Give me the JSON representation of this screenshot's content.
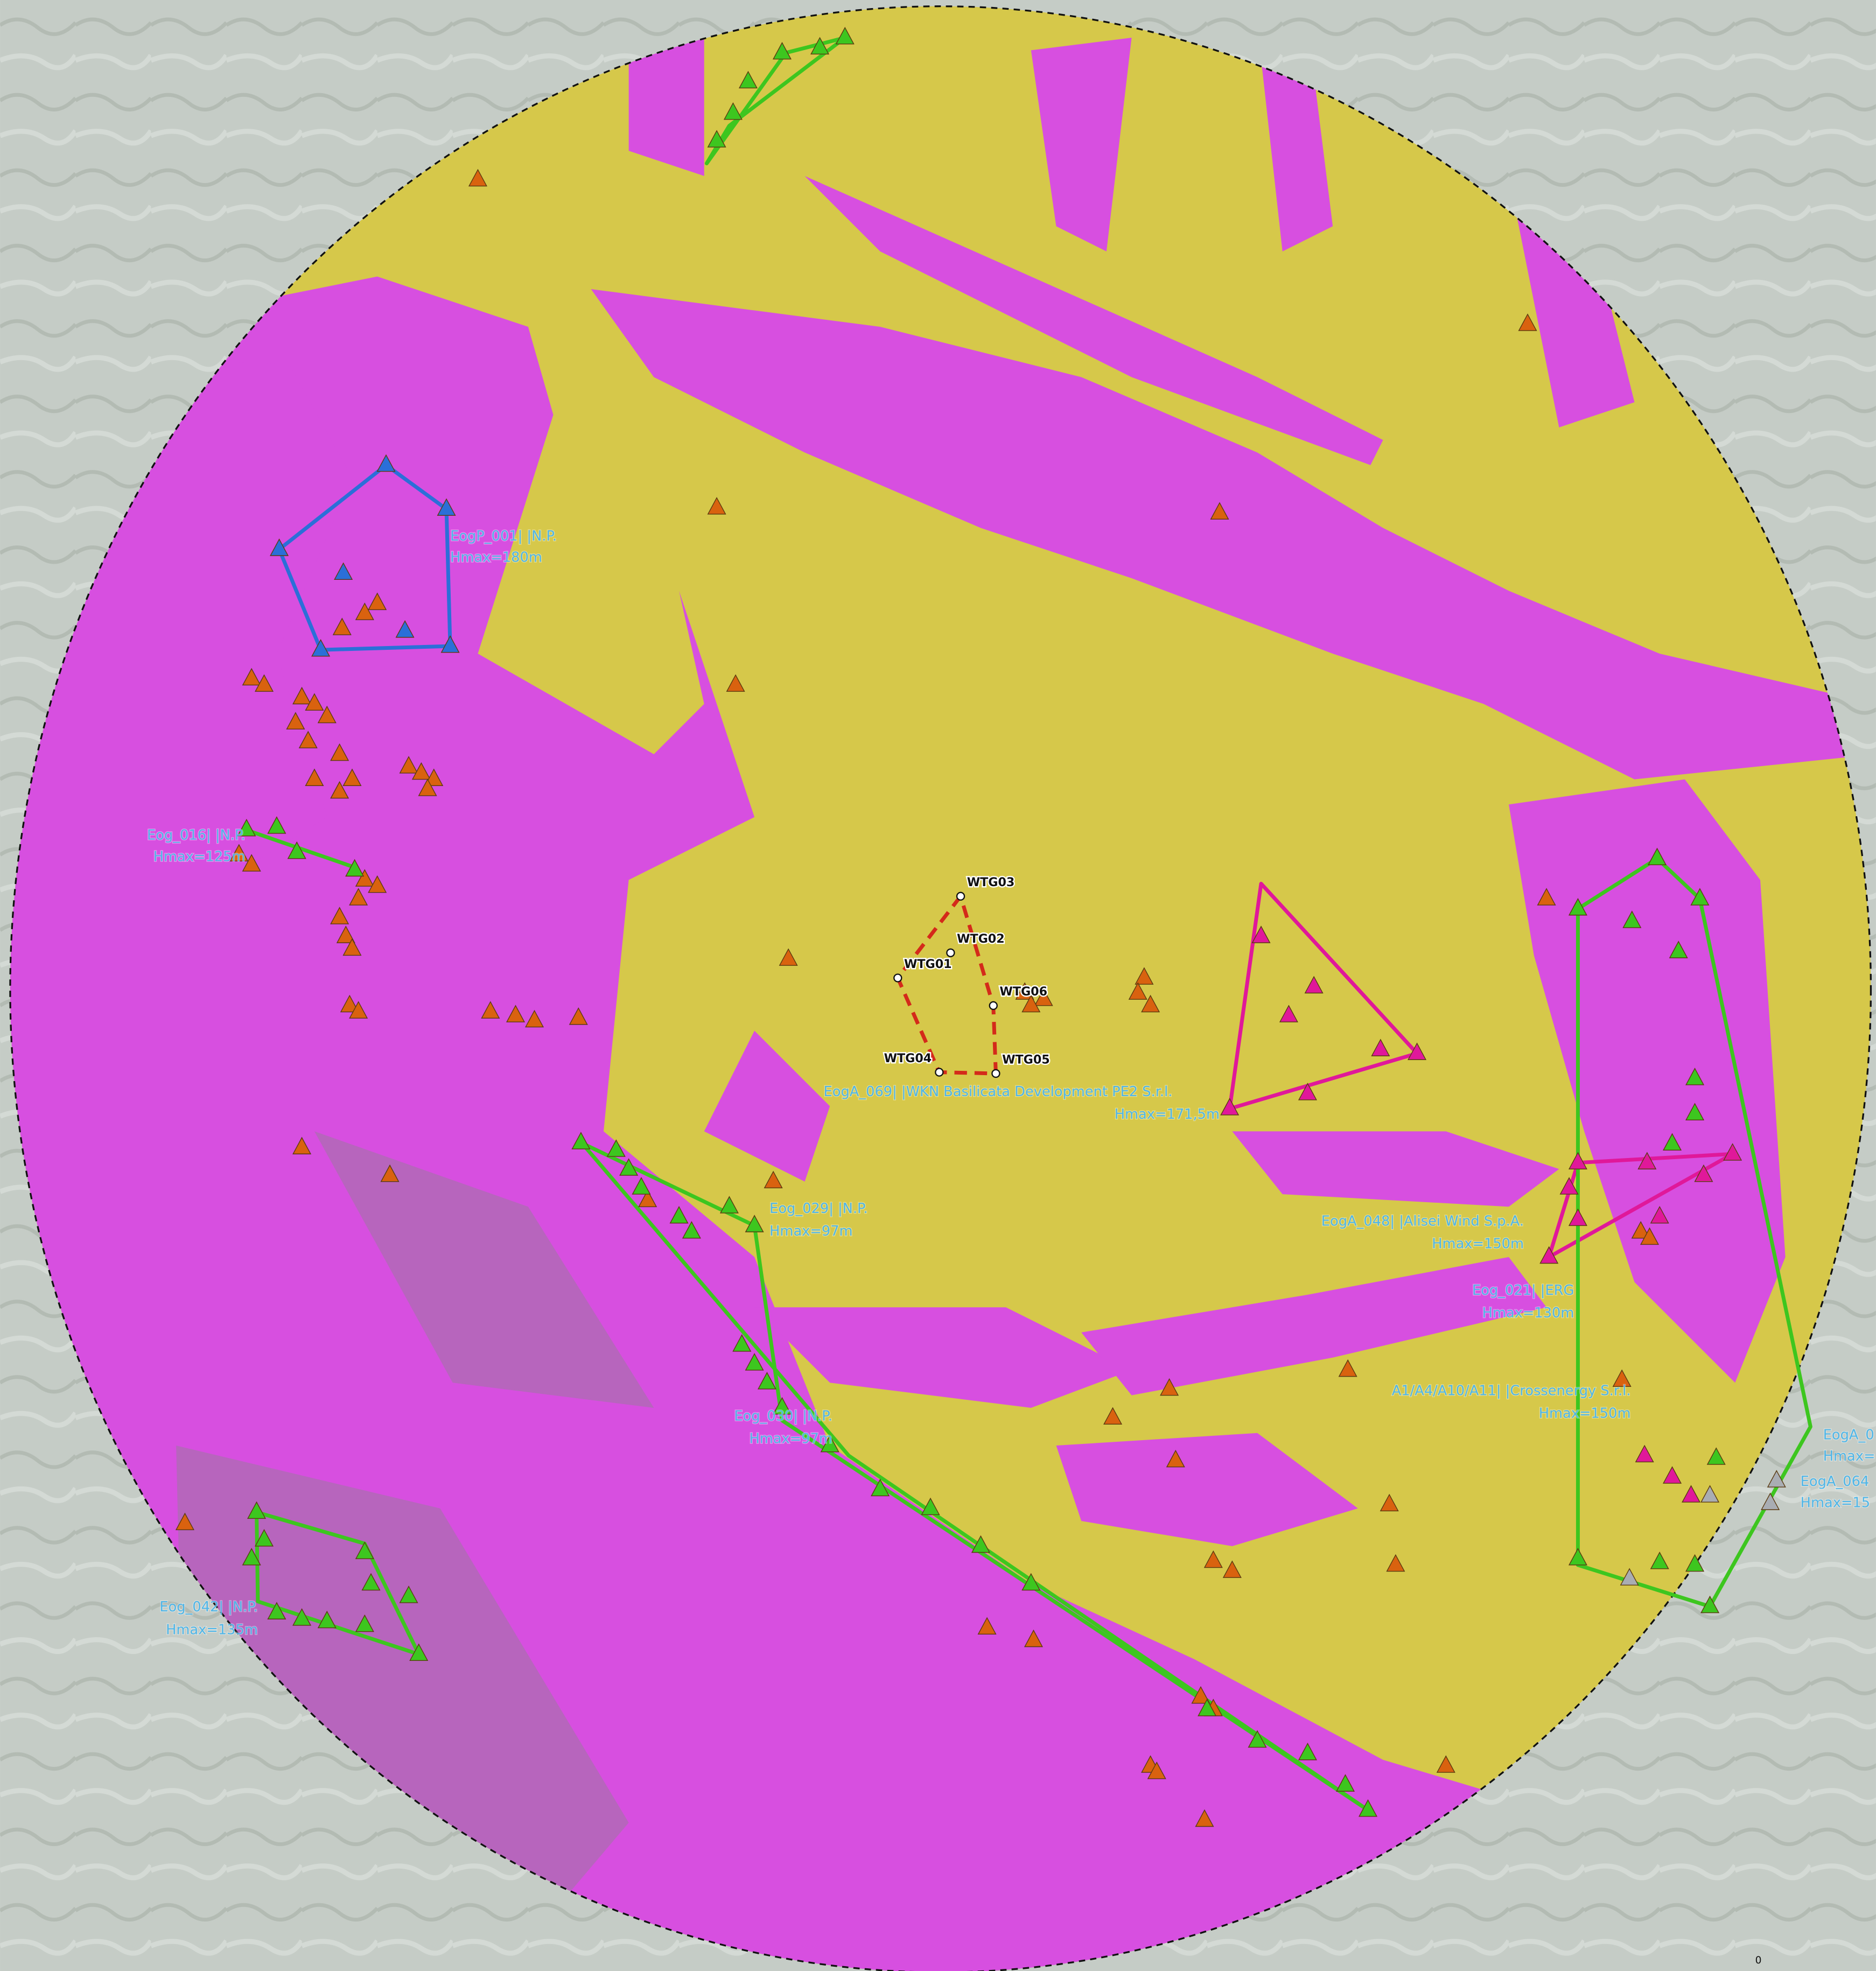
{
  "turbines": [
    {
      "label": "WTG01"
    },
    {
      "label": "WTG02"
    },
    {
      "label": "WTG03"
    },
    {
      "label": "WTG04"
    },
    {
      "label": "WTG05"
    },
    {
      "label": "WTG06"
    }
  ],
  "clusters": [
    {
      "name": "EogP_001| |N.P.",
      "height": "Hmax=180m"
    },
    {
      "name": "Eog_016| |N.P.",
      "height": "Hmax=125m"
    },
    {
      "name": "EogA_069| |WKN Basilicata Development PE2 S.r.l.",
      "height": "Hmax=171,5m"
    },
    {
      "name": "Eog_029| |N.P.",
      "height": "Hmax=97m"
    },
    {
      "name": "EogA_048| |Alisei Wind S.p.A.",
      "height": "Hmax=150m"
    },
    {
      "name": "Eog_021| |ERG",
      "height": "Hmax=130m"
    },
    {
      "name": "A1/A4/A10/A11| |Crossenergy S.r.l.",
      "height": "Hmax=150m"
    },
    {
      "name": "Eog_030| |N.P.",
      "height": "Hmax=97m"
    },
    {
      "name": "Eog_042| |N.P.",
      "height": "Hmax=135m"
    },
    {
      "name": "EogA_0",
      "height": "Hmax="
    },
    {
      "name": "EogA_064",
      "height": "Hmax=15"
    }
  ],
  "scale_label": "0"
}
